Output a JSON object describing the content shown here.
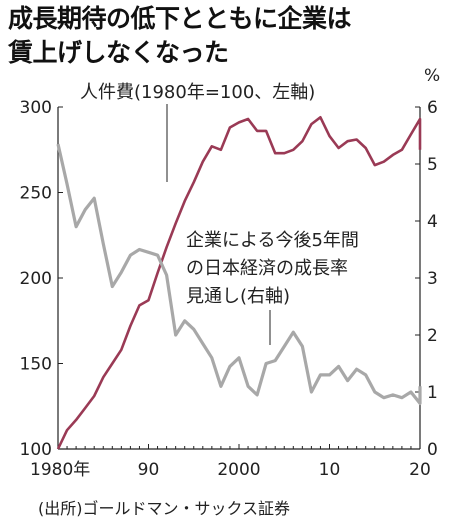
{
  "title": {
    "line1": "成長期待の低下とともに企業は",
    "line2": "賃上げしなくなった"
  },
  "source": "(出所)ゴールドマン・サックス証券",
  "colors": {
    "wage": "#9a3a55",
    "growth": "#a8a8a8",
    "axis": "#222222"
  },
  "chart_data": {
    "type": "line",
    "x_range": [
      1980,
      2020
    ],
    "x_ticks": [
      "1980年",
      "90",
      "2000",
      "10",
      "20"
    ],
    "x_tick_values": [
      1980,
      1990,
      2000,
      2010,
      2020
    ],
    "y_left": {
      "range": [
        100,
        300
      ],
      "ticks": [
        "100",
        "150",
        "200",
        "250",
        "300"
      ],
      "tick_values": [
        100,
        150,
        200,
        250,
        300
      ]
    },
    "y_right": {
      "range": [
        0,
        6
      ],
      "unit": "%",
      "ticks": [
        "0",
        "1",
        "2",
        "3",
        "4",
        "5",
        "6"
      ],
      "tick_values": [
        0,
        1,
        2,
        3,
        4,
        5,
        6
      ]
    },
    "grid": false,
    "annotations": {
      "wage": "人件費(1980年=100、左軸)",
      "growth_line1": "企業による今後5年間",
      "growth_line2": "の日本経済の成長率",
      "growth_line3": "見通し(右軸)"
    },
    "series": [
      {
        "axis": "left",
        "points": [
          [
            1980,
            100
          ],
          [
            1981,
            111
          ],
          [
            1982,
            117
          ],
          [
            1983,
            124
          ],
          [
            1984,
            131
          ],
          [
            1985,
            142
          ],
          [
            1986,
            150
          ],
          [
            1987,
            158
          ],
          [
            1988,
            172
          ],
          [
            1989,
            184
          ],
          [
            1990,
            187
          ],
          [
            1991,
            203
          ],
          [
            1992,
            218
          ],
          [
            1993,
            232
          ],
          [
            1994,
            245
          ],
          [
            1995,
            256
          ],
          [
            1996,
            268
          ],
          [
            1997,
            277
          ],
          [
            1998,
            275
          ],
          [
            1999,
            288
          ],
          [
            2000,
            291
          ],
          [
            2001,
            293
          ],
          [
            2002,
            286
          ],
          [
            2003,
            286
          ],
          [
            2004,
            273
          ],
          [
            2005,
            273
          ],
          [
            2006,
            275
          ],
          [
            2007,
            280
          ],
          [
            2008,
            290
          ],
          [
            2009,
            294
          ],
          [
            2010,
            283
          ],
          [
            2011,
            276
          ],
          [
            2012,
            280
          ],
          [
            2013,
            281
          ],
          [
            2014,
            276
          ],
          [
            2015,
            266
          ],
          [
            2016,
            268
          ],
          [
            2017,
            272
          ],
          [
            2018,
            275
          ],
          [
            2019,
            284
          ],
          [
            2020,
            293
          ],
          [
            2021,
            288
          ],
          [
            2022,
            275
          ]
        ]
      },
      {
        "axis": "right",
        "points": [
          [
            1980,
            5.35
          ],
          [
            1981,
            4.65
          ],
          [
            1982,
            3.9
          ],
          [
            1983,
            4.2
          ],
          [
            1984,
            4.4
          ],
          [
            1985,
            3.6
          ],
          [
            1986,
            2.85
          ],
          [
            1987,
            3.1
          ],
          [
            1988,
            3.4
          ],
          [
            1989,
            3.5
          ],
          [
            1990,
            3.45
          ],
          [
            1991,
            3.4
          ],
          [
            1992,
            3.05
          ],
          [
            1993,
            2.0
          ],
          [
            1994,
            2.25
          ],
          [
            1995,
            2.1
          ],
          [
            1996,
            1.85
          ],
          [
            1997,
            1.6
          ],
          [
            1998,
            1.1
          ],
          [
            1999,
            1.45
          ],
          [
            2000,
            1.6
          ],
          [
            2001,
            1.1
          ],
          [
            2002,
            0.95
          ],
          [
            2003,
            1.5
          ],
          [
            2004,
            1.55
          ],
          [
            2005,
            1.8
          ],
          [
            2006,
            2.05
          ],
          [
            2007,
            1.8
          ],
          [
            2008,
            1.0
          ],
          [
            2009,
            1.3
          ],
          [
            2010,
            1.3
          ],
          [
            2011,
            1.45
          ],
          [
            2012,
            1.2
          ],
          [
            2013,
            1.4
          ],
          [
            2014,
            1.3
          ],
          [
            2015,
            1.0
          ],
          [
            2016,
            0.9
          ],
          [
            2017,
            0.95
          ],
          [
            2018,
            0.9
          ],
          [
            2019,
            1.0
          ],
          [
            2020,
            0.8
          ],
          [
            2021,
            1.1
          ]
        ]
      }
    ]
  }
}
